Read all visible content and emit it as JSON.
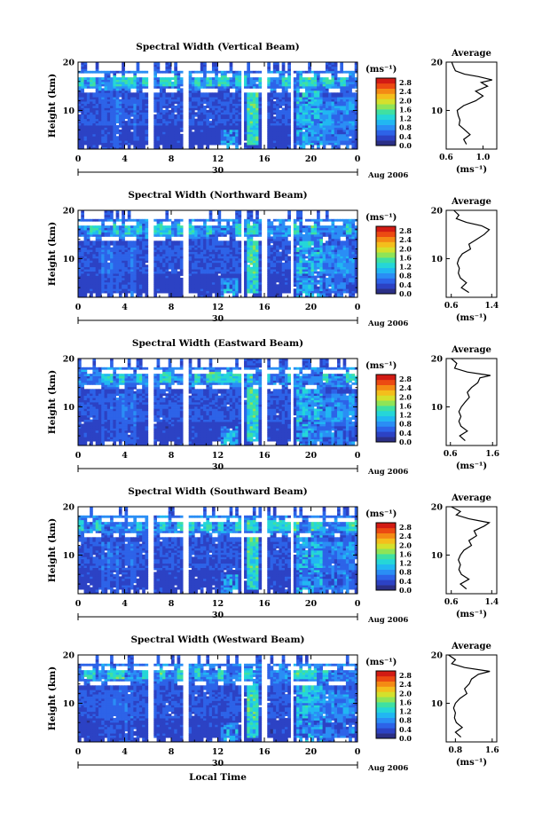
{
  "chart_data": {
    "type": "heatmap",
    "common": {
      "ylabel": "Height (km)",
      "yticks": [
        "20",
        "10"
      ],
      "ylim": [
        2,
        20
      ],
      "xticks": [
        "0",
        "4",
        "8",
        "12",
        "16",
        "20",
        "0"
      ],
      "xlim": [
        0,
        24
      ],
      "date_day": "30",
      "date_month_year": "Aug 2006",
      "xlabel": "Local Time",
      "unit_label": "(ms⁻¹)",
      "colorbar_ticks": [
        "2.8",
        "2.4",
        "2.0",
        "1.6",
        "1.2",
        "0.8",
        "0.4",
        "0.0"
      ],
      "colorbar_range": [
        0,
        3.0
      ],
      "avg_title": "Average",
      "avg_xlabel": "(ms⁻¹)",
      "avg_yticks": [
        "20",
        "10"
      ],
      "gaps_hours": [
        [
          6.0,
          6.4
        ],
        [
          9.1,
          9.4
        ],
        [
          13.9,
          14.3
        ],
        [
          15.8,
          16.2
        ],
        [
          18.3,
          18.6
        ]
      ],
      "colormap": [
        "#2b2f86",
        "#2c42c4",
        "#2d63e8",
        "#2a8ef5",
        "#21b7f2",
        "#25d6d8",
        "#3fe0a2",
        "#8fe457",
        "#d4e02c",
        "#f4be1c",
        "#f48a14",
        "#ec4a12",
        "#d21b14"
      ]
    },
    "panels": [
      {
        "title": "Spectral Width (Vertical Beam)",
        "avg_xticks": [
          "0.6",
          "1.0"
        ],
        "avg_xlim": [
          0.6,
          1.15
        ],
        "avg_profile": [
          [
            3,
            0.82
          ],
          [
            4,
            0.79
          ],
          [
            5,
            0.86
          ],
          [
            6,
            0.8
          ],
          [
            7,
            0.74
          ],
          [
            8,
            0.75
          ],
          [
            9,
            0.73
          ],
          [
            10,
            0.72
          ],
          [
            11,
            0.79
          ],
          [
            12,
            0.92
          ],
          [
            13,
            1.0
          ],
          [
            14,
            0.92
          ],
          [
            15,
            1.05
          ],
          [
            15.8,
            0.98
          ],
          [
            16.3,
            1.1
          ],
          [
            17,
            0.95
          ],
          [
            17.5,
            0.8
          ],
          [
            18.2,
            0.7
          ],
          [
            19,
            0.68
          ],
          [
            20,
            0.66
          ]
        ]
      },
      {
        "title": "Spectral Width (Northward Beam)",
        "avg_xticks": [
          "0.6",
          "1.4"
        ],
        "avg_xlim": [
          0.5,
          1.5
        ],
        "avg_profile": [
          [
            3,
            0.95
          ],
          [
            4,
            0.8
          ],
          [
            5,
            0.9
          ],
          [
            6,
            0.78
          ],
          [
            7,
            0.74
          ],
          [
            8,
            0.76
          ],
          [
            9,
            0.72
          ],
          [
            10,
            0.75
          ],
          [
            11,
            0.82
          ],
          [
            12,
            0.98
          ],
          [
            13,
            0.95
          ],
          [
            14,
            1.1
          ],
          [
            15,
            1.25
          ],
          [
            16,
            1.35
          ],
          [
            16.8,
            1.2
          ],
          [
            17.5,
            0.9
          ],
          [
            18.3,
            0.7
          ],
          [
            19,
            0.75
          ],
          [
            20,
            0.65
          ]
        ]
      },
      {
        "title": "Spectral Width (Eastward Beam)",
        "avg_xticks": [
          "0.6",
          "1.6"
        ],
        "avg_xlim": [
          0.5,
          1.7
        ],
        "avg_profile": [
          [
            3,
            0.95
          ],
          [
            4,
            0.82
          ],
          [
            5,
            1.0
          ],
          [
            6,
            0.85
          ],
          [
            7,
            0.8
          ],
          [
            8,
            0.85
          ],
          [
            9,
            0.8
          ],
          [
            10,
            0.86
          ],
          [
            11,
            0.95
          ],
          [
            12,
            1.05
          ],
          [
            13,
            1.0
          ],
          [
            14,
            1.1
          ],
          [
            15,
            1.25
          ],
          [
            16,
            1.3
          ],
          [
            16.5,
            1.55
          ],
          [
            17.2,
            1.0
          ],
          [
            18,
            0.7
          ],
          [
            19,
            0.75
          ],
          [
            20,
            0.62
          ]
        ]
      },
      {
        "title": "Spectral Width (Southward Beam)",
        "avg_xticks": [
          "0.6",
          "1.4"
        ],
        "avg_xlim": [
          0.5,
          1.5
        ],
        "avg_profile": [
          [
            3,
            0.9
          ],
          [
            4,
            0.78
          ],
          [
            5,
            0.95
          ],
          [
            6,
            0.8
          ],
          [
            7,
            0.75
          ],
          [
            8,
            0.78
          ],
          [
            9,
            0.74
          ],
          [
            10,
            0.78
          ],
          [
            11,
            0.85
          ],
          [
            12,
            1.0
          ],
          [
            13,
            0.95
          ],
          [
            14,
            1.1
          ],
          [
            15,
            1.05
          ],
          [
            16,
            1.25
          ],
          [
            16.7,
            1.35
          ],
          [
            17.5,
            0.95
          ],
          [
            18.3,
            0.7
          ],
          [
            19,
            0.78
          ],
          [
            20,
            0.6
          ]
        ]
      },
      {
        "title": "Spectral Width (Westward Beam)",
        "avg_xticks": [
          "0.8",
          "1.6"
        ],
        "avg_xlim": [
          0.6,
          1.7
        ],
        "avg_profile": [
          [
            3,
            0.92
          ],
          [
            4,
            0.8
          ],
          [
            5,
            0.95
          ],
          [
            6,
            0.82
          ],
          [
            7,
            0.78
          ],
          [
            8,
            0.8
          ],
          [
            9,
            0.76
          ],
          [
            10,
            0.8
          ],
          [
            11,
            0.9
          ],
          [
            12,
            1.05
          ],
          [
            13,
            1.0
          ],
          [
            14,
            1.1
          ],
          [
            15,
            1.15
          ],
          [
            16,
            1.3
          ],
          [
            16.6,
            1.55
          ],
          [
            17.4,
            1.0
          ],
          [
            18.2,
            0.72
          ],
          [
            19,
            0.8
          ],
          [
            20,
            0.65
          ]
        ]
      }
    ]
  }
}
